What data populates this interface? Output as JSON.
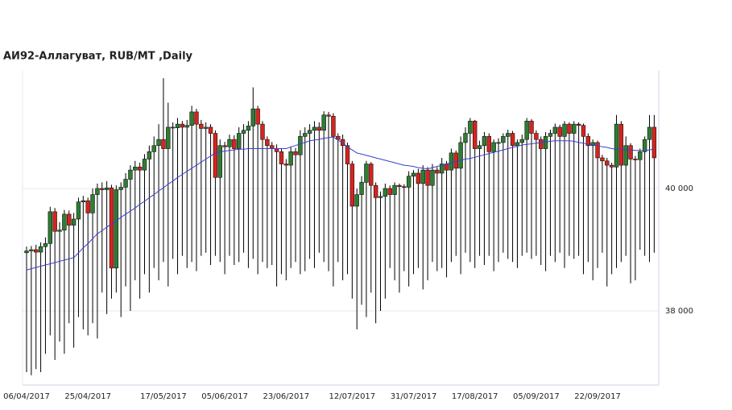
{
  "chart_data": {
    "type": "candlestick",
    "title": "АИ92-Аллагуват,  RUB/MT ,Daily",
    "categories": [
      "06/04/2017",
      null,
      null,
      null,
      null,
      null,
      null,
      null,
      null,
      null,
      null,
      null,
      null,
      "25/04/2017",
      null,
      null,
      null,
      null,
      null,
      null,
      null,
      null,
      null,
      null,
      null,
      null,
      null,
      null,
      null,
      "17/05/2017",
      null,
      null,
      null,
      null,
      null,
      null,
      null,
      null,
      null,
      null,
      null,
      null,
      "05/06/2017",
      null,
      null,
      null,
      null,
      null,
      null,
      null,
      null,
      null,
      null,
      null,
      null,
      "23/06/2017",
      null,
      null,
      null,
      null,
      null,
      null,
      null,
      null,
      null,
      null,
      null,
      null,
      null,
      "12/07/2017",
      null,
      null,
      null,
      null,
      null,
      null,
      null,
      null,
      null,
      null,
      null,
      null,
      "31/07/2017",
      null,
      null,
      null,
      null,
      null,
      null,
      null,
      null,
      null,
      null,
      null,
      null,
      "17/08/2017",
      null,
      null,
      null,
      null,
      null,
      null,
      null,
      null,
      null,
      null,
      null,
      null,
      "05/09/2017",
      null,
      null,
      null,
      null,
      null,
      null,
      null,
      null,
      null,
      null,
      null,
      null,
      "22/09/2017",
      null,
      null,
      null,
      null,
      null,
      null,
      null,
      null,
      null,
      null,
      null,
      null
    ],
    "open": [
      38950,
      38980,
      39000,
      38960,
      39050,
      39100,
      39620,
      39300,
      39320,
      39580,
      39400,
      39500,
      39780,
      39800,
      39600,
      39900,
      40000,
      39980,
      40010,
      38700,
      39980,
      40020,
      40150,
      40300,
      40350,
      40300,
      40480,
      40600,
      40700,
      40800,
      40650,
      41000,
      40990,
      41050,
      41000,
      41030,
      41250,
      41050,
      40980,
      41000,
      40900,
      40180,
      40700,
      40680,
      40800,
      40650,
      40900,
      40950,
      41020,
      41300,
      41050,
      40800,
      40700,
      40650,
      40600,
      40400,
      40380,
      40600,
      40550,
      40850,
      40900,
      40950,
      41000,
      40950,
      41200,
      41180,
      40850,
      40800,
      40700,
      40400,
      39710,
      39900,
      40100,
      40400,
      40050,
      39850,
      39870,
      40000,
      39900,
      40050,
      40030,
      40020,
      40200,
      40250,
      40080,
      40300,
      40050,
      40300,
      40250,
      40400,
      40300,
      40580,
      40330,
      40750,
      40900,
      41100,
      40650,
      40700,
      40850,
      40600,
      40750,
      40750,
      40850,
      40900,
      40700,
      40750,
      40800,
      41100,
      40900,
      40800,
      40650,
      40850,
      40900,
      41000,
      40850,
      41050,
      40900,
      41050,
      41030,
      40850,
      40700,
      40750,
      40500,
      40450,
      40380,
      40350,
      41050,
      40380,
      40700,
      40480,
      40470,
      40600,
      40800,
      41000
    ],
    "high": [
      39050,
      39060,
      39080,
      39120,
      39200,
      39700,
      39680,
      39450,
      39650,
      39640,
      39600,
      39850,
      39880,
      39850,
      40000,
      40080,
      40100,
      40120,
      40060,
      40050,
      40100,
      40250,
      40380,
      40450,
      40420,
      40560,
      40700,
      40850,
      41050,
      41800,
      41400,
      41080,
      41150,
      41100,
      41120,
      41350,
      41300,
      41120,
      41080,
      41050,
      40950,
      40800,
      40760,
      40880,
      40870,
      41000,
      41050,
      41100,
      41650,
      41350,
      41100,
      40850,
      40760,
      40720,
      40650,
      40480,
      40680,
      40660,
      40950,
      41000,
      41050,
      41100,
      41080,
      41260,
      41250,
      41230,
      40900,
      40880,
      40750,
      40450,
      40000,
      40200,
      40450,
      40430,
      40100,
      39950,
      40080,
      40050,
      40100,
      40080,
      40070,
      40280,
      40300,
      40320,
      40380,
      40350,
      40400,
      40350,
      40500,
      40450,
      40650,
      40620,
      40850,
      41000,
      41150,
      41120,
      40780,
      40920,
      40900,
      40800,
      40820,
      40900,
      40960,
      40940,
      40800,
      40880,
      41150,
      41130,
      40950,
      40850,
      40920,
      40960,
      41060,
      41040,
      41100,
      41080,
      41100,
      41080,
      41060,
      40900,
      40800,
      40780,
      40550,
      40500,
      40420,
      41200,
      41100,
      40850,
      40740,
      40530,
      40650,
      40850,
      41200,
      41200
    ],
    "low": [
      37000,
      36950,
      37050,
      37000,
      37300,
      37600,
      37200,
      37500,
      37300,
      37800,
      37400,
      37900,
      37700,
      37600,
      37800,
      37550,
      38300,
      37950,
      38200,
      38300,
      37900,
      38400,
      38000,
      38500,
      38200,
      38600,
      38300,
      38700,
      38500,
      38800,
      38400,
      38850,
      38600,
      38900,
      38700,
      38800,
      38650,
      38900,
      38950,
      38750,
      38900,
      38800,
      38600,
      38900,
      38750,
      38800,
      38950,
      38700,
      38850,
      38600,
      38800,
      38700,
      38750,
      38400,
      38600,
      38500,
      38700,
      38800,
      38600,
      38650,
      38850,
      38700,
      38950,
      38800,
      38650,
      38400,
      38800,
      38500,
      38600,
      38200,
      37700,
      38100,
      37900,
      38300,
      37800,
      38000,
      38200,
      38700,
      38500,
      38300,
      38650,
      38400,
      38600,
      38700,
      38350,
      38500,
      38800,
      38650,
      38700,
      38550,
      38800,
      38900,
      38600,
      38950,
      38800,
      38700,
      38900,
      38750,
      38900,
      38650,
      38800,
      38950,
      38850,
      38800,
      38700,
      38900,
      38950,
      38850,
      38900,
      38750,
      38650,
      38900,
      38800,
      38950,
      38700,
      38900,
      38850,
      38900,
      38600,
      38800,
      38500,
      38700,
      38950,
      38400,
      38600,
      38700,
      38800,
      38900,
      38450,
      38500,
      39000,
      38900,
      38800,
      38950
    ],
    "close": [
      38980,
      39000,
      38960,
      39050,
      39100,
      39620,
      39300,
      39320,
      39580,
      39400,
      39500,
      39780,
      39800,
      39600,
      39900,
      40000,
      39980,
      40010,
      38700,
      39980,
      40020,
      40150,
      40300,
      40350,
      40300,
      40480,
      40600,
      40700,
      40800,
      40650,
      41000,
      40990,
      41050,
      41000,
      41030,
      41250,
      41050,
      40980,
      41000,
      40900,
      40180,
      40700,
      40680,
      40800,
      40650,
      40900,
      40950,
      41020,
      41300,
      41050,
      40800,
      40700,
      40650,
      40600,
      40400,
      40380,
      40600,
      40550,
      40850,
      40900,
      40950,
      41000,
      40950,
      41200,
      41180,
      40850,
      40800,
      40700,
      40400,
      39710,
      39900,
      40100,
      40400,
      40050,
      39850,
      39870,
      40000,
      39900,
      40050,
      40030,
      40020,
      40200,
      40250,
      40080,
      40300,
      40050,
      40300,
      40250,
      40400,
      40300,
      40580,
      40330,
      40750,
      40900,
      41100,
      40650,
      40700,
      40850,
      40600,
      40750,
      40750,
      40850,
      40900,
      40700,
      40750,
      40800,
      41100,
      40900,
      40800,
      40650,
      40850,
      40900,
      41000,
      40850,
      41050,
      40900,
      41050,
      41030,
      40850,
      40700,
      40750,
      40500,
      40450,
      40380,
      40350,
      41050,
      40380,
      40700,
      40480,
      40470,
      40600,
      40800,
      41000,
      40500
    ],
    "moving_average": {
      "color": "#3a3fd0",
      "values": [
        38670,
        38690,
        38710,
        38730,
        38750,
        38770,
        38790,
        38810,
        38830,
        38850,
        38870,
        38950,
        39030,
        39100,
        39180,
        39260,
        39310,
        39370,
        39420,
        39470,
        39530,
        39580,
        39630,
        39680,
        39740,
        39790,
        39850,
        39900,
        39960,
        40010,
        40070,
        40120,
        40180,
        40230,
        40280,
        40330,
        40380,
        40430,
        40480,
        40530,
        40580,
        40600,
        40610,
        40620,
        40630,
        40640,
        40640,
        40650,
        40650,
        40650,
        40650,
        40650,
        40650,
        40650,
        40650,
        40650,
        40680,
        40700,
        40730,
        40750,
        40780,
        40790,
        40800,
        40820,
        40830,
        40840,
        40790,
        40740,
        40680,
        40630,
        40580,
        40560,
        40540,
        40520,
        40500,
        40480,
        40460,
        40440,
        40420,
        40400,
        40380,
        40370,
        40360,
        40340,
        40330,
        40320,
        40340,
        40360,
        40380,
        40400,
        40420,
        40440,
        40460,
        40480,
        40490,
        40510,
        40530,
        40550,
        40570,
        40590,
        40610,
        40630,
        40650,
        40670,
        40690,
        40710,
        40720,
        40730,
        40740,
        40750,
        40760,
        40770,
        40780,
        40780,
        40780,
        40780,
        40770,
        40750,
        40740,
        40720,
        40710,
        40700,
        40680,
        40670,
        40650,
        40640,
        40640,
        40630,
        40630,
        40620,
        40620,
        40620,
        40630,
        40640
      ]
    },
    "up_color": "#2f7d32",
    "down_color": "#d8231d",
    "ylim": [
      36790,
      41920
    ],
    "yticks": [
      {
        "value": 38000,
        "label": "38 000"
      },
      {
        "value": 40000,
        "label": "40 000"
      }
    ],
    "grid": true
  }
}
